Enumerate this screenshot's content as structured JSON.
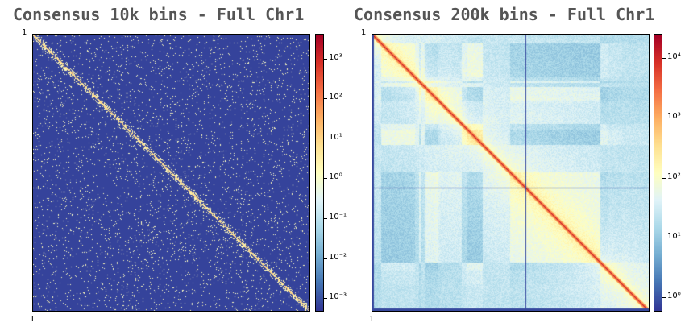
{
  "chart_data": [
    {
      "type": "heatmap",
      "title": "Consensus 10k bins - Full Chr1",
      "x_tick_labels": [
        "1"
      ],
      "y_tick_labels": [
        "1"
      ],
      "colormap": "RdYlBu_r",
      "scale": "log",
      "colorbar_range": [
        0.0005,
        4000
      ],
      "colorbar_ticks": [
        {
          "value": 0.001,
          "label": "10⁻³"
        },
        {
          "value": 0.01,
          "label": "10⁻²"
        },
        {
          "value": 0.1,
          "label": "10⁻¹"
        },
        {
          "value": 1,
          "label": "10⁰"
        },
        {
          "value": 10,
          "label": "10¹"
        },
        {
          "value": 100,
          "label": "10²"
        },
        {
          "value": 1000,
          "label": "10³"
        }
      ]
    },
    {
      "type": "heatmap",
      "title": "Consensus 200k bins - Full Chr1",
      "x_tick_labels": [
        "1"
      ],
      "y_tick_labels": [
        "1"
      ],
      "colormap": "RdYlBu_r",
      "scale": "log",
      "colorbar_range": [
        0.6,
        25000
      ],
      "colorbar_ticks": [
        {
          "value": 1,
          "label": "10⁰"
        },
        {
          "value": 10,
          "label": "10¹"
        },
        {
          "value": 100,
          "label": "10²"
        },
        {
          "value": 1000,
          "label": "10³"
        },
        {
          "value": 10000,
          "label": "10⁴"
        }
      ]
    }
  ],
  "colors": {
    "background_low": "#313695",
    "high": "#a50026",
    "title_text": "#555555"
  }
}
